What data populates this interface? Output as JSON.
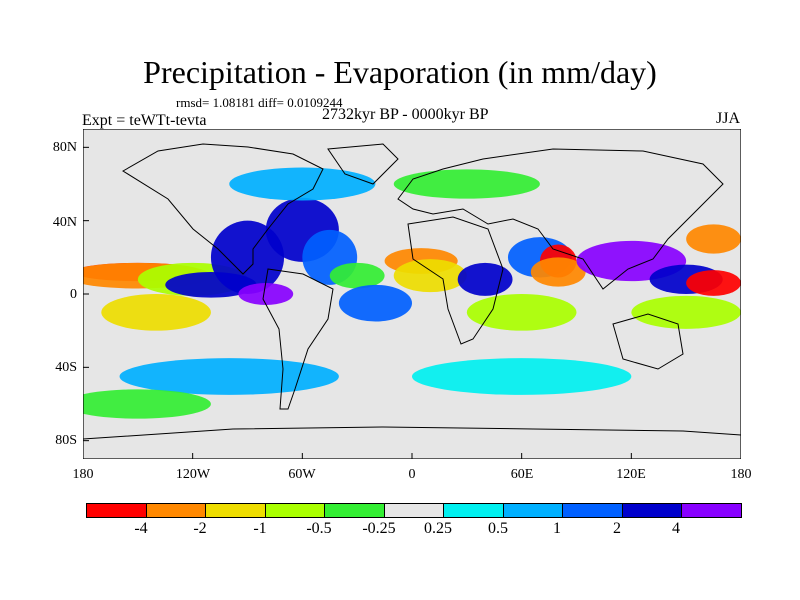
{
  "chart_data": {
    "type": "heatmap",
    "title": "Precipitation - Evaporation (in mm/day)",
    "stats": "rmsd= 1.08181 diff= 0.0109244",
    "experiment": "Expt = teWTt-tevta",
    "period": "2732kyr BP - 0000kyr BP",
    "season": "JJA",
    "xlim": [
      -180,
      180
    ],
    "ylim": [
      -90,
      90
    ],
    "x_tick_labels": [
      "180",
      "120W",
      "60W",
      "0",
      "60E",
      "120E",
      "180"
    ],
    "y_tick_labels": [
      "80N",
      "40N",
      "0",
      "40S",
      "80S"
    ],
    "colorbar": {
      "levels": [
        "-4",
        "-2",
        "-1",
        "-0.5",
        "-0.25",
        "0.25",
        "0.5",
        "1",
        "2",
        "4"
      ],
      "colors": [
        "#ff0000",
        "#ff8800",
        "#eedd00",
        "#aaff00",
        "#33ee33",
        "#e6e6e6",
        "#00f0f0",
        "#00b0ff",
        "#0060ff",
        "#0000cc",
        "#8800ff"
      ]
    },
    "regions": [
      {
        "lon": -150,
        "lat": 12,
        "w": 70,
        "h": 10,
        "level": 0
      },
      {
        "lon": -150,
        "lat": 10,
        "w": 80,
        "h": 14,
        "level": 1
      },
      {
        "lon": -120,
        "lat": 8,
        "w": 60,
        "h": 18,
        "level": 3
      },
      {
        "lon": -110,
        "lat": 5,
        "w": 50,
        "h": 14,
        "level": 9
      },
      {
        "lon": -90,
        "lat": 20,
        "w": 40,
        "h": 40,
        "level": 9
      },
      {
        "lon": -80,
        "lat": 0,
        "w": 30,
        "h": 12,
        "level": 10
      },
      {
        "lon": -60,
        "lat": 35,
        "w": 40,
        "h": 35,
        "level": 9
      },
      {
        "lon": -45,
        "lat": 20,
        "w": 30,
        "h": 30,
        "level": 8
      },
      {
        "lon": -30,
        "lat": 10,
        "w": 30,
        "h": 14,
        "level": 4
      },
      {
        "lon": 5,
        "lat": 18,
        "w": 40,
        "h": 14,
        "level": 1
      },
      {
        "lon": 10,
        "lat": 10,
        "w": 40,
        "h": 18,
        "level": 2
      },
      {
        "lon": 40,
        "lat": 8,
        "w": 30,
        "h": 18,
        "level": 9
      },
      {
        "lon": 70,
        "lat": 20,
        "w": 35,
        "h": 22,
        "level": 8
      },
      {
        "lon": 80,
        "lat": 18,
        "w": 20,
        "h": 18,
        "level": 0
      },
      {
        "lon": 80,
        "lat": 12,
        "w": 30,
        "h": 16,
        "level": 1
      },
      {
        "lon": 120,
        "lat": 18,
        "w": 60,
        "h": 22,
        "level": 10
      },
      {
        "lon": 150,
        "lat": 8,
        "w": 40,
        "h": 16,
        "level": 9
      },
      {
        "lon": 165,
        "lat": 30,
        "w": 30,
        "h": 16,
        "level": 1
      },
      {
        "lon": 165,
        "lat": 6,
        "w": 30,
        "h": 14,
        "level": 0
      },
      {
        "lon": -140,
        "lat": -10,
        "w": 60,
        "h": 20,
        "level": 2
      },
      {
        "lon": -20,
        "lat": -5,
        "w": 40,
        "h": 20,
        "level": 8
      },
      {
        "lon": 60,
        "lat": -10,
        "w": 60,
        "h": 20,
        "level": 3
      },
      {
        "lon": 150,
        "lat": -10,
        "w": 60,
        "h": 18,
        "level": 3
      },
      {
        "lon": -100,
        "lat": -45,
        "w": 120,
        "h": 20,
        "level": 7
      },
      {
        "lon": 60,
        "lat": -45,
        "w": 120,
        "h": 20,
        "level": 6
      },
      {
        "lon": -150,
        "lat": -60,
        "w": 80,
        "h": 16,
        "level": 4
      },
      {
        "lon": -60,
        "lat": 60,
        "w": 80,
        "h": 18,
        "level": 7
      },
      {
        "lon": 30,
        "lat": 60,
        "w": 80,
        "h": 16,
        "level": 4
      }
    ]
  }
}
